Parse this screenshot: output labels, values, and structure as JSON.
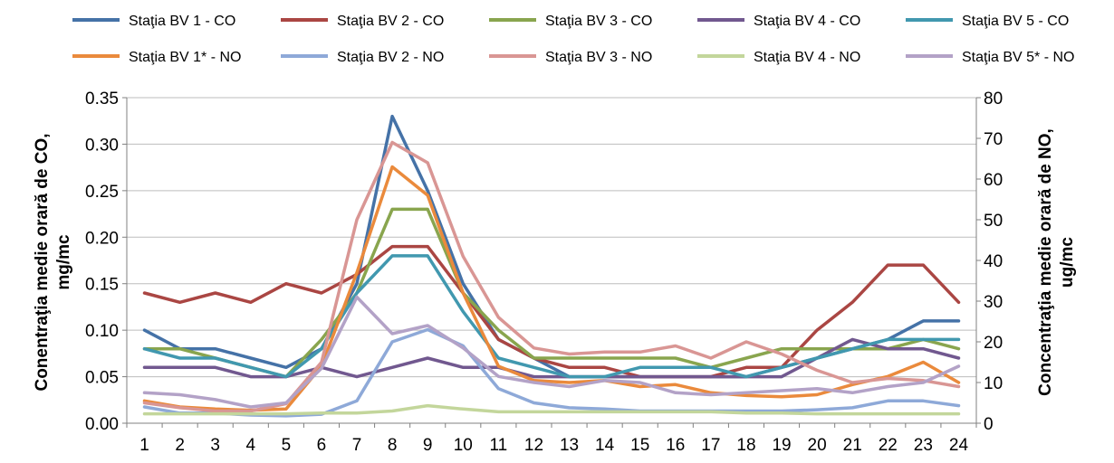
{
  "chart_data": {
    "type": "line",
    "categories": [
      "1",
      "2",
      "3",
      "4",
      "5",
      "6",
      "7",
      "8",
      "9",
      "10",
      "11",
      "12",
      "13",
      "14",
      "15",
      "16",
      "17",
      "18",
      "19",
      "20",
      "21",
      "22",
      "23",
      "24"
    ],
    "y_left": {
      "label_line1": "Conentraţia medie orară de CO,",
      "label_line2": "mg/mc",
      "ylim": [
        0,
        0.35
      ],
      "ticks": [
        "0.00",
        "0.05",
        "0.10",
        "0.15",
        "0.20",
        "0.25",
        "0.30",
        "0.35"
      ]
    },
    "y_right": {
      "label_line1": "Concentraţia medie orară de NO,",
      "label_line2": "ug/mc",
      "ylim": [
        0,
        80
      ],
      "ticks": [
        "0",
        "10",
        "20",
        "30",
        "40",
        "50",
        "60",
        "70",
        "80"
      ]
    },
    "grid": "horizontal",
    "legend_position": "top",
    "series": [
      {
        "name": "Staţia BV 1 - CO",
        "axis": "left",
        "color": "#4572a7",
        "values": [
          0.1,
          0.08,
          0.08,
          0.07,
          0.06,
          0.08,
          0.15,
          0.33,
          0.25,
          0.15,
          0.09,
          0.07,
          0.05,
          0.05,
          0.05,
          0.05,
          0.05,
          0.05,
          0.06,
          0.07,
          0.08,
          0.09,
          0.11,
          0.11
        ]
      },
      {
        "name": "Staţia BV 2 - CO",
        "axis": "left",
        "color": "#aa4643",
        "values": [
          0.14,
          0.13,
          0.14,
          0.13,
          0.15,
          0.14,
          0.16,
          0.19,
          0.19,
          0.14,
          0.09,
          0.07,
          0.06,
          0.06,
          0.05,
          0.05,
          0.05,
          0.06,
          0.06,
          0.1,
          0.13,
          0.17,
          0.17,
          0.13
        ]
      },
      {
        "name": "Staţia BV 3 - CO",
        "axis": "left",
        "color": "#89a54e",
        "values": [
          0.08,
          0.08,
          0.07,
          0.06,
          0.05,
          0.09,
          0.14,
          0.23,
          0.23,
          0.14,
          0.1,
          0.07,
          0.07,
          0.07,
          0.07,
          0.07,
          0.06,
          0.07,
          0.08,
          0.08,
          0.08,
          0.08,
          0.09,
          0.08
        ]
      },
      {
        "name": "Staţia BV 4 - CO",
        "axis": "left",
        "color": "#71588f",
        "values": [
          0.06,
          0.06,
          0.06,
          0.05,
          0.05,
          0.06,
          0.05,
          0.06,
          0.07,
          0.06,
          0.06,
          0.05,
          0.05,
          0.05,
          0.05,
          0.05,
          0.05,
          0.05,
          0.05,
          0.07,
          0.09,
          0.08,
          0.08,
          0.07
        ]
      },
      {
        "name": "Staţia BV 5 - CO",
        "axis": "left",
        "color": "#4198af",
        "values": [
          0.08,
          0.07,
          0.07,
          0.06,
          0.05,
          0.08,
          0.14,
          0.18,
          0.18,
          0.12,
          0.07,
          0.06,
          0.05,
          0.05,
          0.06,
          0.06,
          0.06,
          0.05,
          0.06,
          0.07,
          0.08,
          0.09,
          0.09,
          0.09
        ]
      },
      {
        "name": "Staţia BV 1* - NO",
        "axis": "right",
        "color": "#ea8a3c",
        "values": [
          5.5,
          4,
          3.5,
          3.2,
          3.5,
          14,
          37,
          63,
          56,
          32,
          14,
          10.5,
          10,
          10.5,
          9,
          9.5,
          7.5,
          6.8,
          6.5,
          7,
          9.5,
          11.5,
          15,
          10
        ]
      },
      {
        "name": "Staţia BV 2 - NO",
        "axis": "right",
        "color": "#8ea9d8",
        "values": [
          4,
          2.5,
          2.5,
          2,
          1.8,
          2.2,
          5.5,
          20,
          23,
          19,
          8.5,
          5,
          3.8,
          3.5,
          3,
          3,
          3,
          3,
          3,
          3.3,
          3.8,
          5.5,
          5.5,
          4.3
        ]
      },
      {
        "name": "Staţia BV 3 - NO",
        "axis": "right",
        "color": "#d99694",
        "values": [
          5,
          3.8,
          3,
          3,
          4.8,
          15,
          50,
          69,
          64,
          41,
          26,
          18.5,
          17,
          17.5,
          17.5,
          19,
          16,
          20,
          17,
          13,
          10,
          11,
          10.5,
          9
        ]
      },
      {
        "name": "Staţia BV 4 - NO",
        "axis": "right",
        "color": "#c3d69b",
        "values": [
          2.3,
          2.3,
          2.3,
          2.3,
          2.3,
          2.5,
          2.5,
          3,
          4.3,
          3.5,
          2.8,
          2.8,
          2.8,
          2.8,
          2.8,
          2.8,
          2.8,
          2.5,
          2.5,
          2.3,
          2.3,
          2.3,
          2.3,
          2.3
        ]
      },
      {
        "name": "Staţia BV 5* - NO",
        "axis": "right",
        "color": "#b3a2c7",
        "values": [
          7.5,
          7,
          5.8,
          4,
          5,
          13.5,
          31,
          22,
          24,
          18.5,
          11.5,
          10,
          9,
          10.5,
          10,
          7.5,
          7,
          7.5,
          8,
          8.5,
          7.5,
          9,
          10,
          14
        ]
      }
    ]
  }
}
